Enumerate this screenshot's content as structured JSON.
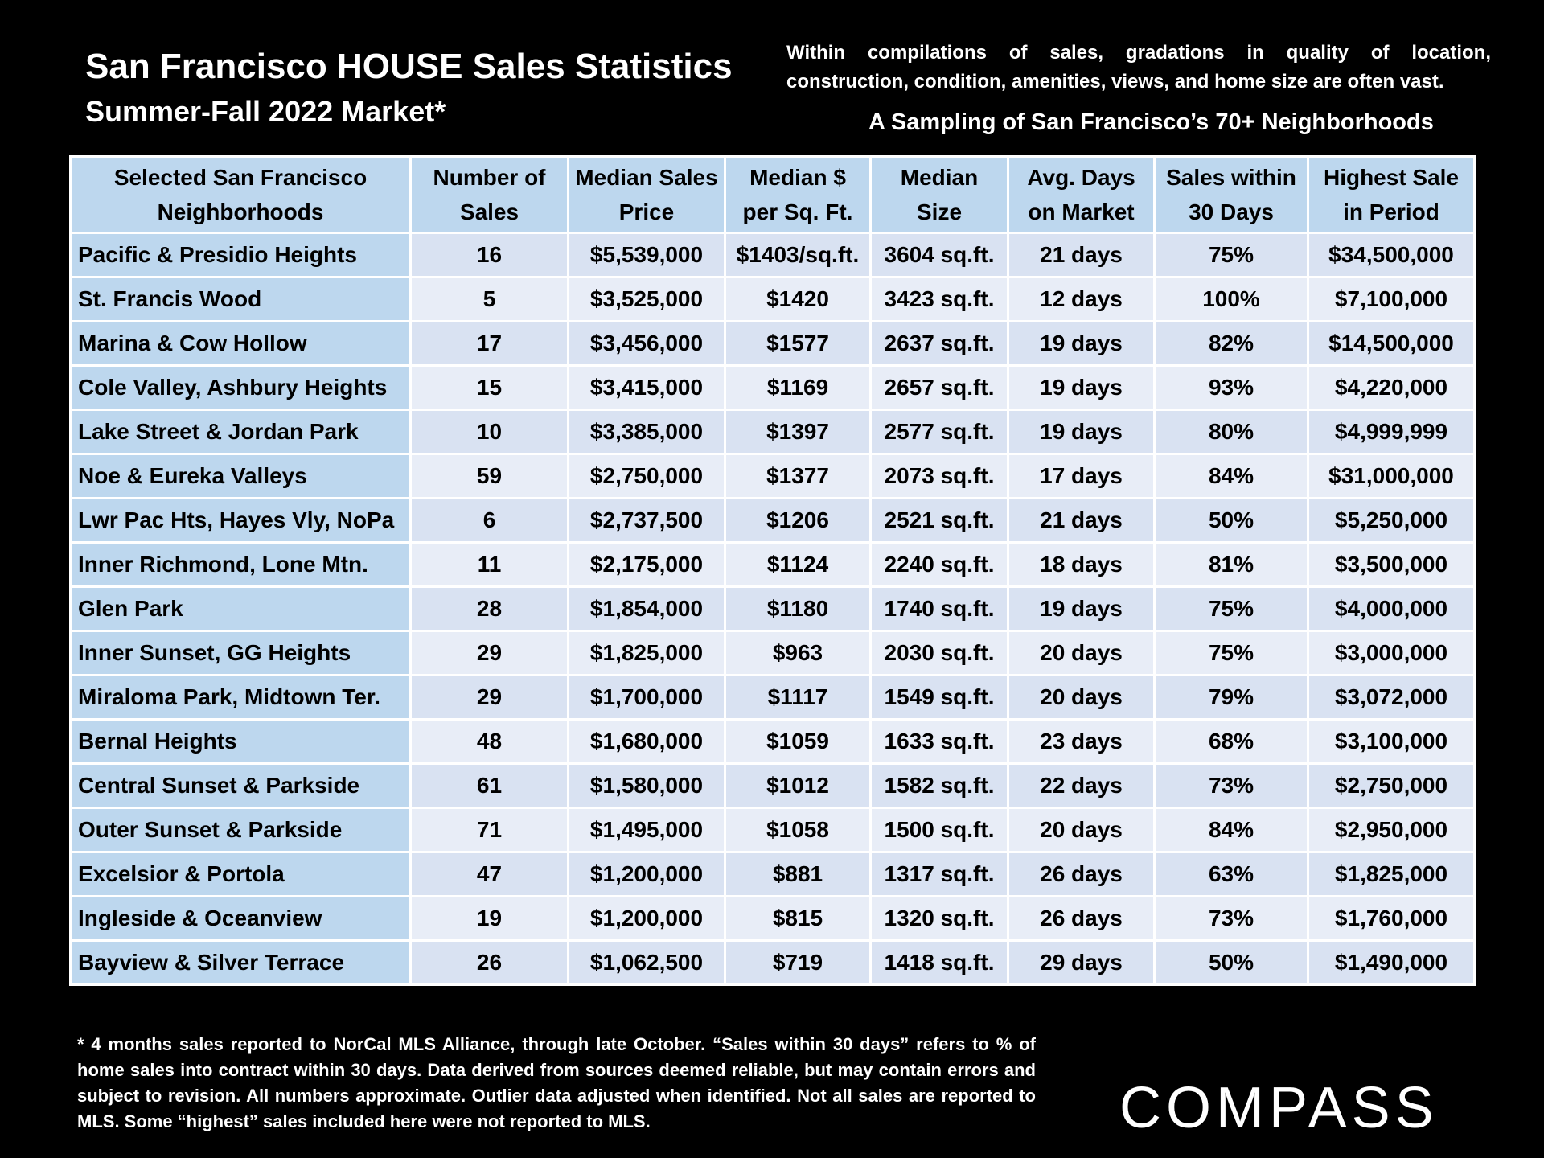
{
  "header": {
    "title": "San Francisco HOUSE Sales Statistics",
    "subtitle": "Summer-Fall 2022 Market*",
    "note_line1": "Within compilations of sales, gradations in quality of location,",
    "note_line2": "construction, condition, amenities, views, and home size are often vast.",
    "sampling": "A Sampling of San Francisco’s 70+ Neighborhoods"
  },
  "chart_data": {
    "type": "table",
    "title": "San Francisco HOUSE Sales Statistics",
    "columns": [
      "Selected San Francisco Neighborhoods",
      "Number of Sales",
      "Median Sales Price",
      "Median $ per Sq. Ft.",
      "Median Size",
      "Avg. Days on Market",
      "Sales within 30 Days",
      "Highest Sale in Period"
    ],
    "rows": [
      [
        "Pacific & Presidio Heights",
        "16",
        "$5,539,000",
        "$1403/sq.ft.",
        "3604 sq.ft.",
        "21 days",
        "75%",
        "$34,500,000"
      ],
      [
        "St. Francis Wood",
        "5",
        "$3,525,000",
        "$1420",
        "3423 sq.ft.",
        "12 days",
        "100%",
        "$7,100,000"
      ],
      [
        "Marina & Cow Hollow",
        "17",
        "$3,456,000",
        "$1577",
        "2637 sq.ft.",
        "19 days",
        "82%",
        "$14,500,000"
      ],
      [
        "Cole Valley, Ashbury Heights",
        "15",
        "$3,415,000",
        "$1169",
        "2657 sq.ft.",
        "19 days",
        "93%",
        "$4,220,000"
      ],
      [
        "Lake Street & Jordan Park",
        "10",
        "$3,385,000",
        "$1397",
        "2577 sq.ft.",
        "19 days",
        "80%",
        "$4,999,999"
      ],
      [
        "Noe & Eureka Valleys",
        "59",
        "$2,750,000",
        "$1377",
        "2073 sq.ft.",
        "17 days",
        "84%",
        "$31,000,000"
      ],
      [
        "Lwr Pac Hts, Hayes Vly, NoPa",
        "6",
        "$2,737,500",
        "$1206",
        "2521 sq.ft.",
        "21 days",
        "50%",
        "$5,250,000"
      ],
      [
        "Inner Richmond, Lone Mtn.",
        "11",
        "$2,175,000",
        "$1124",
        "2240 sq.ft.",
        "18 days",
        "81%",
        "$3,500,000"
      ],
      [
        "Glen Park",
        "28",
        "$1,854,000",
        "$1180",
        "1740 sq.ft.",
        "19 days",
        "75%",
        "$4,000,000"
      ],
      [
        "Inner Sunset, GG Heights",
        "29",
        "$1,825,000",
        "$963",
        "2030 sq.ft.",
        "20 days",
        "75%",
        "$3,000,000"
      ],
      [
        "Miraloma Park, Midtown Ter.",
        "29",
        "$1,700,000",
        "$1117",
        "1549 sq.ft.",
        "20 days",
        "79%",
        "$3,072,000"
      ],
      [
        "Bernal Heights",
        "48",
        "$1,680,000",
        "$1059",
        "1633 sq.ft.",
        "23 days",
        "68%",
        "$3,100,000"
      ],
      [
        "Central Sunset & Parkside",
        "61",
        "$1,580,000",
        "$1012",
        "1582 sq.ft.",
        "22 days",
        "73%",
        "$2,750,000"
      ],
      [
        "Outer Sunset & Parkside",
        "71",
        "$1,495,000",
        "$1058",
        "1500 sq.ft.",
        "20 days",
        "84%",
        "$2,950,000"
      ],
      [
        "Excelsior & Portola",
        "47",
        "$1,200,000",
        "$881",
        "1317 sq.ft.",
        "26 days",
        "63%",
        "$1,825,000"
      ],
      [
        "Ingleside & Oceanview",
        "19",
        "$1,200,000",
        "$815",
        "1320 sq.ft.",
        "26 days",
        "73%",
        "$1,760,000"
      ],
      [
        "Bayview & Silver Terrace",
        "26",
        "$1,062,500",
        "$719",
        "1418 sq.ft.",
        "29 days",
        "50%",
        "$1,490,000"
      ]
    ]
  },
  "footnote": "* 4 months sales reported to NorCal MLS Alliance, through late October. “Sales within 30 days” refers to % of home sales into contract within 30 days. Data derived from sources deemed reliable, but may contain errors and subject to revision. All numbers approximate. Outlier data adjusted when identified. Not all sales are reported to MLS. Some “highest” sales included here were not reported to MLS.",
  "logo": {
    "text": "COMPASS",
    "color": "#ffffff"
  },
  "colors": {
    "header_bg": "#bdd7ee",
    "row_odd": "#d9e2f2",
    "row_even": "#e8edf7",
    "page_bg": "#000000"
  }
}
